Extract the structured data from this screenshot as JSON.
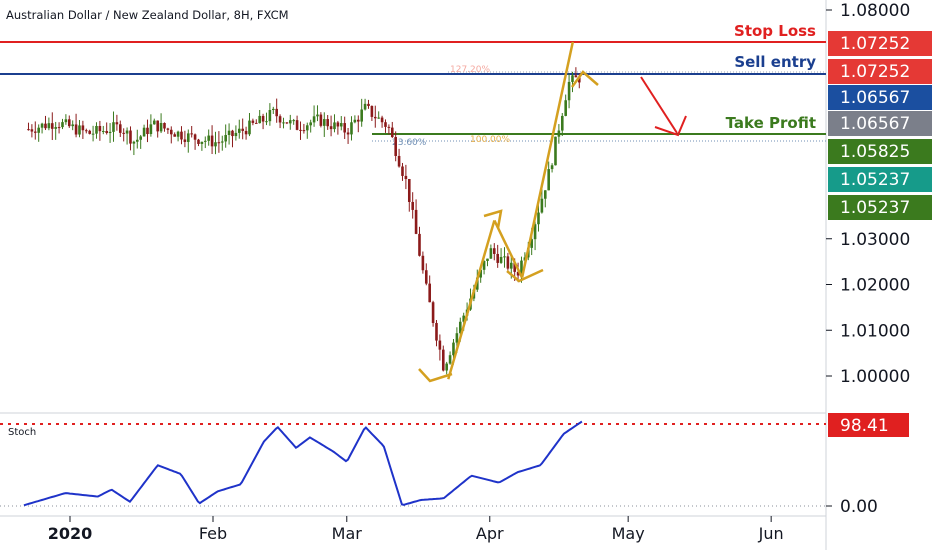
{
  "chart_data": {
    "type": "candlestick",
    "title": "Australian Dollar / New Zealand Dollar, 8H, FXCM",
    "price_axis": {
      "ticks": [
        "1.08000",
        "1.03000",
        "1.02000",
        "1.01000",
        "1.00000"
      ],
      "tick_values": [
        1.08,
        1.03,
        1.02,
        1.01,
        1.0
      ],
      "ylim": [
        0.9955,
        1.0815
      ]
    },
    "time_axis": {
      "labels": [
        "2020",
        "Feb",
        "Mar",
        "Apr",
        "May",
        "Jun"
      ],
      "bold_label": "2020"
    },
    "price_badges": [
      {
        "text": "1.07252",
        "value": 1.07252,
        "color": "#e53935"
      },
      {
        "text": "1.07252",
        "value": 1.07252,
        "color": "#e53935"
      },
      {
        "text": "1.06567",
        "value": 1.06567,
        "color": "#1b4fa0"
      },
      {
        "text": "1.06567",
        "value": 1.06567,
        "color": "#7b7f8a"
      },
      {
        "text": "1.05825",
        "value": 1.05825,
        "color": "#3b7a1e"
      },
      {
        "text": "1.05237",
        "value": 1.05237,
        "color": "#169b8a"
      },
      {
        "text": "1.05237",
        "value": 1.05237,
        "color": "#3b7a1e"
      }
    ],
    "levels": [
      {
        "name": "Stop Loss",
        "value": 1.07252,
        "color": "#e02020"
      },
      {
        "name": "Sell entry",
        "value": 1.06567,
        "color": "#1b3f8f"
      },
      {
        "name": "Take Profit",
        "value": 1.05825,
        "color": "#3b7a1e"
      }
    ],
    "fib_labels": [
      {
        "text": "127.20%",
        "color": "#f4a9a0"
      },
      {
        "text": "23.60%",
        "color": "#6f8fb5"
      },
      {
        "text": "100.00%",
        "color": "#e8b04a"
      }
    ],
    "ohlc_anchors": [
      {
        "date": "2019-12-22",
        "price": 1.0537
      },
      {
        "date": "2019-12-29",
        "price": 1.0555
      },
      {
        "date": "2020-01-05",
        "price": 1.053
      },
      {
        "date": "2020-01-12",
        "price": 1.0545
      },
      {
        "date": "2020-01-15",
        "price": 1.0512
      },
      {
        "date": "2020-01-19",
        "price": 1.055
      },
      {
        "date": "2020-01-26",
        "price": 1.0525
      },
      {
        "date": "2020-02-02",
        "price": 1.051
      },
      {
        "date": "2020-02-06",
        "price": 1.053
      },
      {
        "date": "2020-02-12",
        "price": 1.056
      },
      {
        "date": "2020-02-14",
        "price": 1.0575
      },
      {
        "date": "2020-02-19",
        "price": 1.0545
      },
      {
        "date": "2020-02-24",
        "price": 1.056
      },
      {
        "date": "2020-03-01",
        "price": 1.0535
      },
      {
        "date": "2020-03-05",
        "price": 1.0585
      },
      {
        "date": "2020-03-10",
        "price": 1.0545
      },
      {
        "date": "2020-03-14",
        "price": 1.042
      },
      {
        "date": "2020-03-18",
        "price": 1.02
      },
      {
        "date": "2020-03-22",
        "price": 1.002
      },
      {
        "date": "2020-03-27",
        "price": 1.015
      },
      {
        "date": "2020-04-01",
        "price": 1.0275
      },
      {
        "date": "2020-04-07",
        "price": 1.0225
      },
      {
        "date": "2020-04-10",
        "price": 1.031
      },
      {
        "date": "2020-04-14",
        "price": 1.045
      },
      {
        "date": "2020-04-18",
        "price": 1.064
      },
      {
        "date": "2020-04-21",
        "price": 1.0655
      }
    ],
    "stochastic": {
      "label": "Stoch",
      "current_text": "98.41",
      "current_value": 98.41,
      "axis_label": "0.00",
      "ylim": [
        -2,
        108
      ],
      "anchors": [
        {
          "date": "2019-12-22",
          "value": 2
        },
        {
          "date": "2019-12-31",
          "value": 16
        },
        {
          "date": "2020-01-07",
          "value": 12
        },
        {
          "date": "2020-01-10",
          "value": 20
        },
        {
          "date": "2020-01-14",
          "value": 6
        },
        {
          "date": "2020-01-20",
          "value": 48
        },
        {
          "date": "2020-01-25",
          "value": 38
        },
        {
          "date": "2020-01-29",
          "value": 4
        },
        {
          "date": "2020-02-02",
          "value": 18
        },
        {
          "date": "2020-02-07",
          "value": 26
        },
        {
          "date": "2020-02-12",
          "value": 75
        },
        {
          "date": "2020-02-15",
          "value": 92
        },
        {
          "date": "2020-02-19",
          "value": 68
        },
        {
          "date": "2020-02-22",
          "value": 80
        },
        {
          "date": "2020-02-27",
          "value": 64
        },
        {
          "date": "2020-03-01",
          "value": 52
        },
        {
          "date": "2020-03-05",
          "value": 92
        },
        {
          "date": "2020-03-09",
          "value": 70
        },
        {
          "date": "2020-03-13",
          "value": 2
        },
        {
          "date": "2020-03-17",
          "value": 8
        },
        {
          "date": "2020-03-22",
          "value": 10
        },
        {
          "date": "2020-03-28",
          "value": 36
        },
        {
          "date": "2020-04-03",
          "value": 28
        },
        {
          "date": "2020-04-07",
          "value": 40
        },
        {
          "date": "2020-04-12",
          "value": 48
        },
        {
          "date": "2020-04-17",
          "value": 84
        },
        {
          "date": "2020-04-21",
          "value": 98.41
        }
      ]
    },
    "annotations": [
      "Stop Loss",
      "Sell entry",
      "Take Profit",
      "127.20%",
      "23.60%",
      "100.00%"
    ]
  },
  "colors": {
    "bull": "#3b7a1e",
    "bear": "#8b1a1a",
    "stoch_line": "#1f33c9",
    "stoch_level": "#e02020",
    "pattern": "#d4a020",
    "arrow": "#e02020",
    "axis_border": "#cfd3da"
  }
}
